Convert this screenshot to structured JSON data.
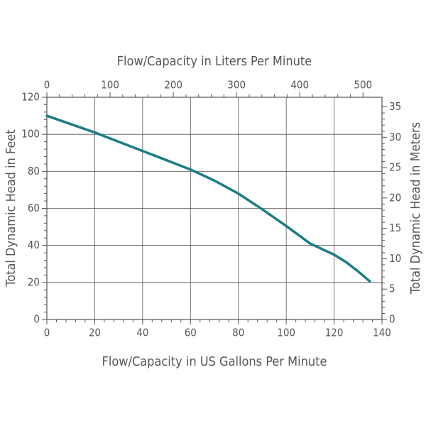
{
  "chart_data": {
    "type": "line",
    "x_label": "Flow/Capacity in US Gallons Per Minute",
    "x2_label": "Flow/Capacity in Liters Per Minute",
    "y_label": "Total Dynamic Head in Feet",
    "y2_label": "Total Dynamic Head in Meters",
    "x": [
      0,
      10,
      20,
      30,
      40,
      50,
      60,
      70,
      80,
      90,
      100,
      110,
      120,
      125,
      130,
      135
    ],
    "series": [
      {
        "color": "#1b7c84",
        "values": [
          110,
          105.5,
          101,
          96,
          91,
          86,
          81,
          75,
          68,
          59.5,
          50.5,
          41,
          35,
          31,
          26,
          20.5
        ]
      }
    ],
    "xlim": [
      0,
      140
    ],
    "xticks": [
      0,
      20,
      40,
      60,
      80,
      100,
      120,
      140
    ],
    "x2lim": [
      0,
      530
    ],
    "x2ticks": [
      0,
      100,
      200,
      300,
      400,
      500
    ],
    "ylim": [
      0,
      120
    ],
    "yticks": [
      0,
      20,
      40,
      60,
      80,
      100,
      120
    ],
    "y2lim": [
      0,
      36.58
    ],
    "y2ticks": [
      0,
      5,
      10,
      15,
      20,
      25,
      30,
      35
    ],
    "grid": true
  }
}
